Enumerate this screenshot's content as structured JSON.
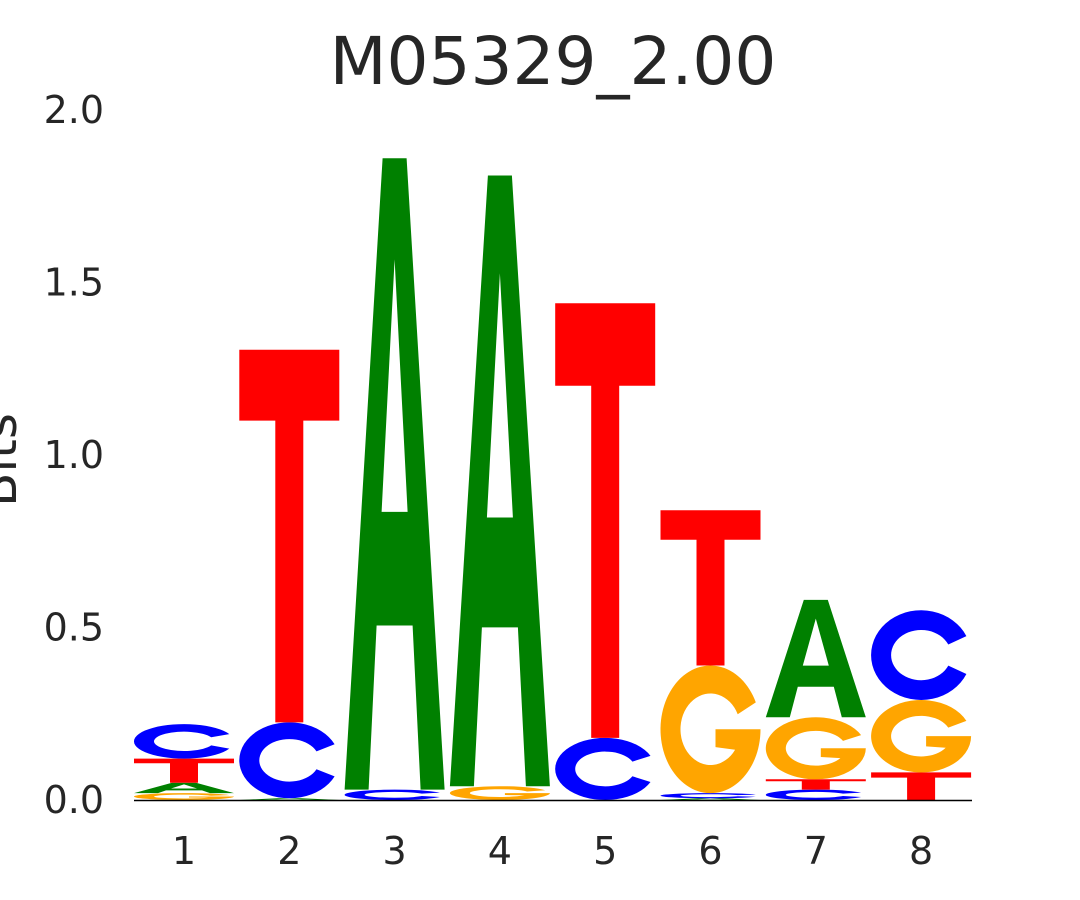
{
  "chart_data": {
    "type": "sequence-logo",
    "title": "M05329_2.00",
    "ylabel": "Bits",
    "xlabel": "",
    "ylim": [
      0,
      2.0
    ],
    "yticks": [
      "0.0",
      "0.5",
      "1.0",
      "1.5",
      "2.0"
    ],
    "ytick_values": [
      0,
      0.5,
      1.0,
      1.5,
      2.0
    ],
    "categories": [
      "1",
      "2",
      "3",
      "4",
      "5",
      "6",
      "7",
      "8"
    ],
    "colors": {
      "A": "#008000",
      "C": "#0000ff",
      "G": "#ffa500",
      "T": "#ff0000"
    },
    "positions": [
      [
        {
          "letter": "G",
          "bits": 0.02
        },
        {
          "letter": "A",
          "bits": 0.03
        },
        {
          "letter": "T",
          "bits": 0.07
        },
        {
          "letter": "C",
          "bits": 0.1
        }
      ],
      [
        {
          "letter": "A",
          "bits": 0.005
        },
        {
          "letter": "C",
          "bits": 0.22
        },
        {
          "letter": "T",
          "bits": 1.08
        }
      ],
      [
        {
          "letter": "C",
          "bits": 0.03
        },
        {
          "letter": "A",
          "bits": 1.83
        }
      ],
      [
        {
          "letter": "G",
          "bits": 0.04
        },
        {
          "letter": "A",
          "bits": 1.77
        }
      ],
      [
        {
          "letter": "C",
          "bits": 0.18
        },
        {
          "letter": "T",
          "bits": 1.26
        }
      ],
      [
        {
          "letter": "A",
          "bits": 0.005
        },
        {
          "letter": "C",
          "bits": 0.015
        },
        {
          "letter": "G",
          "bits": 0.37
        },
        {
          "letter": "T",
          "bits": 0.45
        }
      ],
      [
        {
          "letter": "C",
          "bits": 0.03
        },
        {
          "letter": "T",
          "bits": 0.03
        },
        {
          "letter": "G",
          "bits": 0.18
        },
        {
          "letter": "A",
          "bits": 0.34
        }
      ],
      [
        {
          "letter": "T",
          "bits": 0.08
        },
        {
          "letter": "G",
          "bits": 0.21
        },
        {
          "letter": "C",
          "bits": 0.26
        }
      ]
    ]
  }
}
